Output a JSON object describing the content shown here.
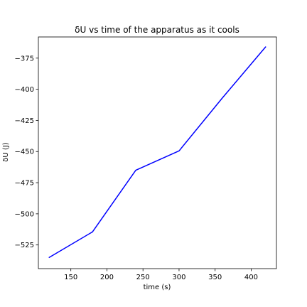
{
  "chart_data": {
    "type": "line",
    "title": "δU vs time of the apparatus as it cools",
    "xlabel": "time (s)",
    "ylabel": "δU (J)",
    "xlim": [
      105,
      435
    ],
    "ylim": [
      -544,
      -358
    ],
    "xticks": [
      150,
      200,
      250,
      300,
      350,
      400
    ],
    "yticks": [
      -525,
      -500,
      -475,
      -450,
      -425,
      -400,
      -375
    ],
    "grid": false,
    "series": [
      {
        "color": "#0000ff",
        "x": [
          120,
          180,
          240,
          300,
          360,
          420
        ],
        "y": [
          -535,
          -514.5,
          -465,
          -449.5,
          -407,
          -366
        ]
      }
    ]
  }
}
